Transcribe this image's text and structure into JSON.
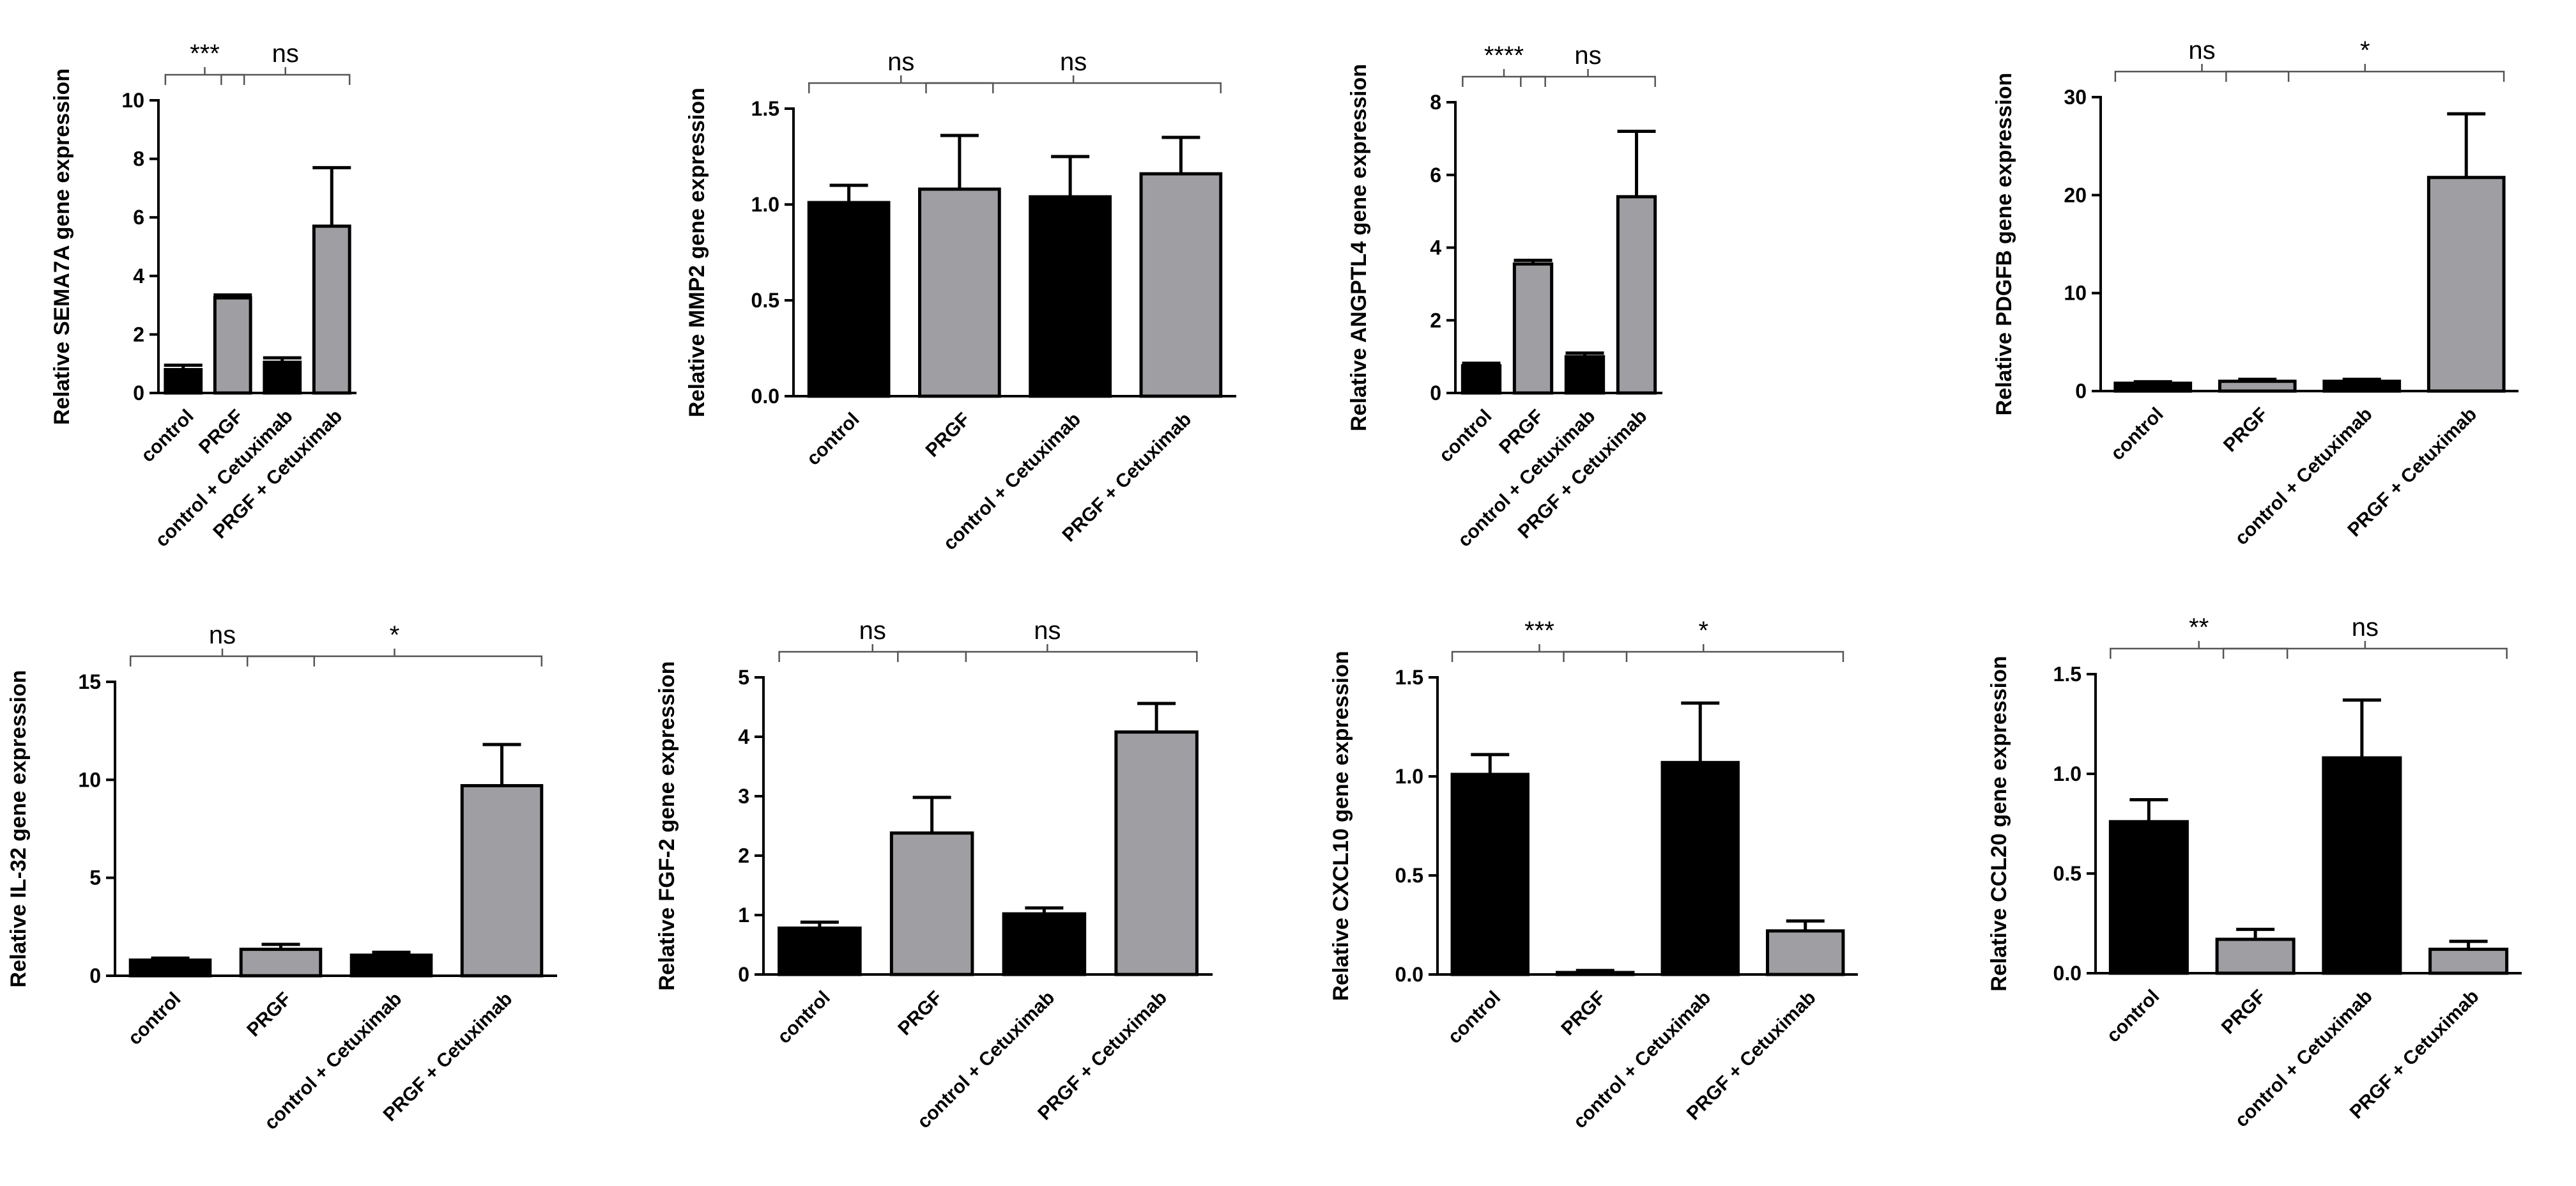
{
  "colors": {
    "control_bar": "#000000",
    "prgf_bar": "#9e9ea3",
    "axis": "#000000",
    "bracket": "#555555"
  },
  "chart_data": [
    {
      "type": "bar",
      "id": "sema7a",
      "ylabel": "Relative SEMA7A gene expression",
      "categories": [
        "control",
        "PRGF",
        "control + Cetuximab",
        "PRGF + Cetuximab"
      ],
      "values": [
        0.8,
        3.25,
        1.05,
        5.7
      ],
      "errors": [
        0.15,
        0.1,
        0.15,
        2.0
      ],
      "ylim": [
        0,
        10
      ],
      "yticks": [
        "0",
        "2",
        "4",
        "6",
        "8",
        "10"
      ],
      "brackets": [
        {
          "from": 0,
          "to": 1,
          "label": "***"
        },
        {
          "from": 1,
          "to": 3,
          "label": "ns"
        }
      ]
    },
    {
      "type": "bar",
      "id": "mmp2",
      "ylabel": "Relative MMP2 gene expression",
      "categories": [
        "control",
        "PRGF",
        "control + Cetuximab",
        "PRGF + Cetuximab"
      ],
      "values": [
        1.01,
        1.08,
        1.04,
        1.16
      ],
      "errors": [
        0.09,
        0.28,
        0.21,
        0.19
      ],
      "ylim": [
        0,
        1.5
      ],
      "yticks": [
        "0.0",
        "0.5",
        "1.0",
        "1.5"
      ],
      "brackets": [
        {
          "from": 0,
          "to": 1,
          "label": "ns"
        },
        {
          "from": 1,
          "to": 3,
          "label": "ns"
        }
      ]
    },
    {
      "type": "bar",
      "id": "angptl4",
      "ylabel": "Relative ANGPTL4 gene expression",
      "categories": [
        "control",
        "PRGF",
        "control + Cetuximab",
        "PRGF + Cetuximab"
      ],
      "values": [
        0.75,
        3.55,
        1.0,
        5.4
      ],
      "errors": [
        0.07,
        0.1,
        0.1,
        1.8
      ],
      "ylim": [
        0,
        8
      ],
      "yticks": [
        "0",
        "2",
        "4",
        "6",
        "8"
      ],
      "brackets": [
        {
          "from": 0,
          "to": 1,
          "label": "****"
        },
        {
          "from": 1,
          "to": 3,
          "label": "ns"
        }
      ]
    },
    {
      "type": "bar",
      "id": "pdgfb",
      "ylabel": "Relative PDGFB gene expression",
      "categories": [
        "control",
        "PRGF",
        "control + Cetuximab",
        "PRGF + Cetuximab"
      ],
      "values": [
        0.8,
        1.0,
        1.0,
        21.8
      ],
      "errors": [
        0.15,
        0.2,
        0.2,
        6.5
      ],
      "ylim": [
        0,
        30
      ],
      "yticks": [
        "0",
        "10",
        "20",
        "30"
      ],
      "brackets": [
        {
          "from": 0,
          "to": 1,
          "label": "ns"
        },
        {
          "from": 1,
          "to": 3,
          "label": "*"
        }
      ]
    },
    {
      "type": "bar",
      "id": "il32",
      "ylabel": "Relative IL-32 gene expression",
      "categories": [
        "control",
        "PRGF",
        "control + Cetuximab",
        "PRGF + Cetuximab"
      ],
      "values": [
        0.8,
        1.35,
        1.05,
        9.7
      ],
      "errors": [
        0.1,
        0.25,
        0.15,
        2.1
      ],
      "ylim": [
        0,
        15
      ],
      "yticks": [
        "0",
        "5",
        "10",
        "15"
      ],
      "brackets": [
        {
          "from": 0,
          "to": 1,
          "label": "ns"
        },
        {
          "from": 1,
          "to": 3,
          "label": "*"
        }
      ]
    },
    {
      "type": "bar",
      "id": "fgf2",
      "ylabel": "Relative FGF-2 gene expression",
      "categories": [
        "control",
        "PRGF",
        "control + Cetuximab",
        "PRGF + Cetuximab"
      ],
      "values": [
        0.78,
        2.38,
        1.02,
        4.08
      ],
      "errors": [
        0.1,
        0.6,
        0.1,
        0.48
      ],
      "ylim": [
        0,
        5
      ],
      "yticks": [
        "0",
        "1",
        "2",
        "3",
        "4",
        "5"
      ],
      "brackets": [
        {
          "from": 0,
          "to": 1,
          "label": "ns"
        },
        {
          "from": 1,
          "to": 3,
          "label": "ns"
        }
      ]
    },
    {
      "type": "bar",
      "id": "cxcl10",
      "ylabel": "Relative CXCL10 gene expression",
      "categories": [
        "control",
        "PRGF",
        "control + Cetuximab",
        "PRGF + Cetuximab"
      ],
      "values": [
        1.01,
        0.01,
        1.07,
        0.22
      ],
      "errors": [
        0.1,
        0.01,
        0.3,
        0.05
      ],
      "ylim": [
        0,
        1.5
      ],
      "yticks": [
        "0.0",
        "0.5",
        "1.0",
        "1.5"
      ],
      "brackets": [
        {
          "from": 0,
          "to": 1,
          "label": "***"
        },
        {
          "from": 1,
          "to": 3,
          "label": "*"
        }
      ]
    },
    {
      "type": "bar",
      "id": "ccl20",
      "ylabel": "Relative CCL20 gene expression",
      "categories": [
        "control",
        "PRGF",
        "control + Cetuximab",
        "PRGF + Cetuximab"
      ],
      "values": [
        0.76,
        0.17,
        1.08,
        0.12
      ],
      "errors": [
        0.11,
        0.05,
        0.29,
        0.04
      ],
      "ylim": [
        0,
        1.5
      ],
      "yticks": [
        "0.0",
        "0.5",
        "1.0",
        "1.5"
      ],
      "brackets": [
        {
          "from": 0,
          "to": 1,
          "label": "**"
        },
        {
          "from": 1,
          "to": 3,
          "label": "ns"
        }
      ]
    }
  ]
}
